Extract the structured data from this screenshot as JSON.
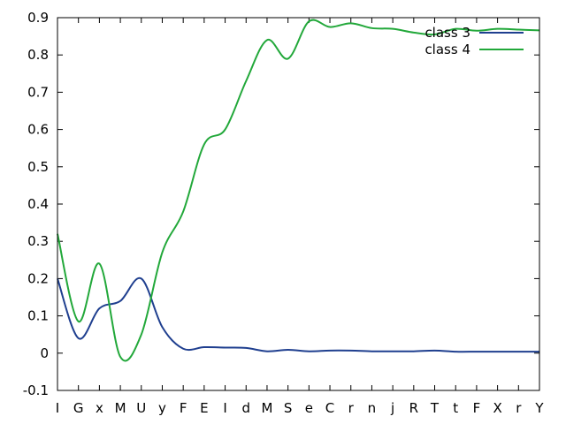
{
  "chart_data": {
    "type": "line",
    "title": "",
    "xlabel": "",
    "ylabel": "",
    "categories": [
      "I",
      "G",
      "x",
      "M",
      "U",
      "y",
      "F",
      "E",
      "I",
      "d",
      "M",
      "S",
      "e",
      "C",
      "r",
      "n",
      "j",
      "R",
      "T",
      "t",
      "F",
      "X",
      "r",
      "Y"
    ],
    "ylim": [
      -0.1,
      0.9
    ],
    "yticks": [
      -0.1,
      0,
      0.1,
      0.2,
      0.3,
      0.4,
      0.5,
      0.6,
      0.7,
      0.8,
      0.9
    ],
    "ytick_labels": [
      "-0.1",
      "0",
      "0.1",
      "0.2",
      "0.3",
      "0.4",
      "0.5",
      "0.6",
      "0.7",
      "0.8",
      "0.9"
    ],
    "grid": false,
    "legend_position": "top-right",
    "series": [
      {
        "name": "class 3",
        "color": "#1f3f8f",
        "values": [
          0.2,
          0.04,
          0.12,
          0.14,
          0.2,
          0.07,
          0.012,
          0.016,
          0.015,
          0.014,
          0.005,
          0.009,
          0.005,
          0.007,
          0.007,
          0.005,
          0.005,
          0.005,
          0.007,
          0.004,
          0.004,
          0.004,
          0.004,
          0.004
        ]
      },
      {
        "name": "class 4",
        "color": "#22a83a",
        "values": [
          0.32,
          0.085,
          0.24,
          -0.01,
          0.05,
          0.27,
          0.38,
          0.56,
          0.6,
          0.73,
          0.84,
          0.79,
          0.89,
          0.875,
          0.885,
          0.872,
          0.87,
          0.86,
          0.855,
          0.87,
          0.865,
          0.87,
          0.868,
          0.866
        ]
      }
    ]
  }
}
